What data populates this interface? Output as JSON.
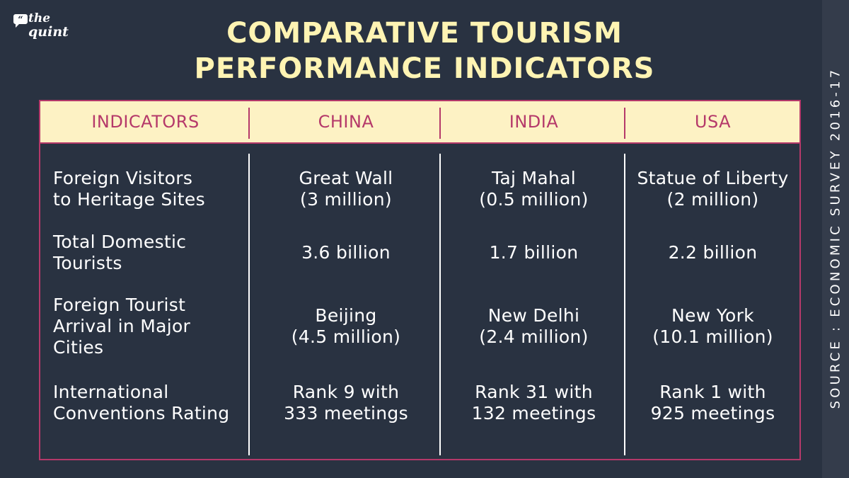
{
  "logo": {
    "line1": "the",
    "line2": "quint",
    "icon": "quote-bubble-icon"
  },
  "title": {
    "line1": "COMPARATIVE TOURISM",
    "line2": "PERFORMANCE INDICATORS"
  },
  "source": "SOURCE : ECONOMIC SURVEY 2016-17",
  "colors": {
    "background": "#293241",
    "title": "#fff4b3",
    "header_bg": "#fdf2c4",
    "accent": "#b5396a",
    "text": "#ffffff"
  },
  "chart_data": {
    "type": "table",
    "title": "COMPARATIVE TOURISM PERFORMANCE INDICATORS",
    "columns": [
      "INDICATORS",
      "CHINA",
      "INDIA",
      "USA"
    ],
    "rows": [
      {
        "indicator": [
          "Foreign Visitors",
          "to Heritage Sites"
        ],
        "china": [
          "Great Wall",
          "(3 million)"
        ],
        "india": [
          "Taj Mahal",
          "(0.5 million)"
        ],
        "usa": [
          "Statue of Liberty",
          "(2 million)"
        ]
      },
      {
        "indicator": [
          "Total Domestic",
          "Tourists"
        ],
        "china": [
          "3.6 billion"
        ],
        "india": [
          "1.7 billion"
        ],
        "usa": [
          "2.2 billion"
        ]
      },
      {
        "indicator": [
          "Foreign Tourist",
          "Arrival in Major",
          "Cities"
        ],
        "china": [
          "Beijing",
          "(4.5 million)"
        ],
        "india": [
          "New Delhi",
          "(2.4 million)"
        ],
        "usa": [
          "New York",
          "(10.1 million)"
        ]
      },
      {
        "indicator": [
          "International",
          "Conventions Rating"
        ],
        "china": [
          "Rank 9 with",
          "333 meetings"
        ],
        "india": [
          "Rank 31 with",
          "132 meetings"
        ],
        "usa": [
          "Rank 1 with",
          "925 meetings"
        ]
      }
    ]
  }
}
